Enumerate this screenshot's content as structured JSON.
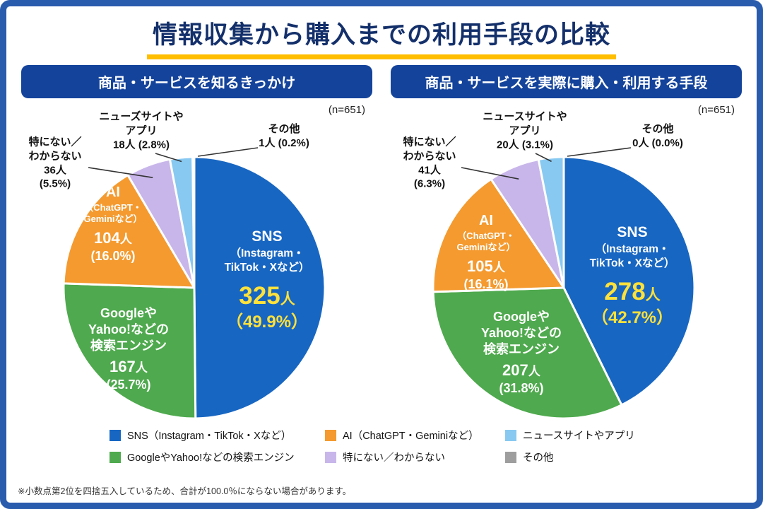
{
  "page": {
    "title": "情報収集から購入までの利用手段の比較",
    "footnote": "※小数点第2位を四捨五入しているため、合計が100.0％にならない場合があります。"
  },
  "colors": {
    "frame": "#2a5cae",
    "header_bg": "#14439b",
    "title_text": "#14306b",
    "underline": "#ffbe00",
    "emphasis_text": "#ffe13b",
    "slices": [
      "#1766c2",
      "#4fa94e",
      "#f49a2f",
      "#c8b6ea",
      "#88c9f1",
      "#9e9e9e"
    ]
  },
  "legend": [
    {
      "label": "SNS（Instagram・TikTok・Xなど）",
      "color": 0
    },
    {
      "label": "AI（ChatGPT・Geminiなど）",
      "color": 2
    },
    {
      "label": "ニュースサイトやアプリ",
      "color": 4
    },
    {
      "label": "GoogleやYahoo!などの検索エンジン",
      "color": 1
    },
    {
      "label": "特にない／わからない",
      "color": 3
    },
    {
      "label": "その他",
      "color": 5
    }
  ],
  "chart_data": [
    {
      "type": "pie",
      "header": "商品・サービスを知るきっかけ",
      "n_label": "(n=651)",
      "total": 651,
      "slices": [
        {
          "label": "SNS（Instagram・TikTok・Xなど）",
          "value": 325,
          "percent": 49.9,
          "placement": "inner",
          "emphasis": true,
          "display": {
            "name_lines": [
              "SNS",
              "（Instagram・",
              "TikTok・Xなど）"
            ],
            "count_num": "325",
            "count_unit": "人",
            "pct": "（49.9%）"
          }
        },
        {
          "label": "GoogleやYahoo!などの検索エンジン",
          "value": 167,
          "percent": 25.7,
          "placement": "inner",
          "display": {
            "name_lines": [
              "Googleや",
              "Yahoo!などの",
              "検索エンジン"
            ],
            "count_num": "167",
            "count_unit": "人",
            "pct": "(25.7%)"
          }
        },
        {
          "label": "AI（ChatGPT・Geminiなど）",
          "value": 104,
          "percent": 16.0,
          "placement": "inner",
          "display": {
            "name_lines": [
              "AI",
              "（ChatGPT・",
              "Geminiなど）"
            ],
            "count_num": "104",
            "count_unit": "人",
            "pct": "(16.0%)"
          }
        },
        {
          "label": "特にない／わからない",
          "value": 36,
          "percent": 5.5,
          "placement": "callout",
          "display": {
            "callout_lines": [
              "特にない／",
              "わからない",
              "36人",
              "(5.5%)"
            ]
          }
        },
        {
          "label": "ニューズサイトやアプリ",
          "value": 18,
          "percent": 2.8,
          "placement": "callout",
          "display": {
            "callout_lines": [
              "ニューズサイトや",
              "アプリ",
              "18人 (2.8%)"
            ]
          }
        },
        {
          "label": "その他",
          "value": 1,
          "percent": 0.2,
          "placement": "callout",
          "display": {
            "callout_lines": [
              "その他",
              "1人 (0.2%)"
            ]
          }
        }
      ]
    },
    {
      "type": "pie",
      "header": "商品・サービスを実際に購入・利用する手段",
      "n_label": "(n=651)",
      "total": 651,
      "slices": [
        {
          "label": "SNS（Instagram・TikTok・Xなど）",
          "value": 278,
          "percent": 42.7,
          "placement": "inner",
          "emphasis": true,
          "display": {
            "name_lines": [
              "SNS",
              "（Instagram・",
              "TikTok・Xなど）"
            ],
            "count_num": "278",
            "count_unit": "人",
            "pct": "（42.7%）"
          }
        },
        {
          "label": "GoogleやYahoo!などの検索エンジン",
          "value": 207,
          "percent": 31.8,
          "placement": "inner",
          "display": {
            "name_lines": [
              "Googleや",
              "Yahoo!などの",
              "検索エンジン"
            ],
            "count_num": "207",
            "count_unit": "人",
            "pct": "(31.8%)"
          }
        },
        {
          "label": "AI（ChatGPT・Geminiなど）",
          "value": 105,
          "percent": 16.1,
          "placement": "inner",
          "display": {
            "name_lines": [
              "AI",
              "（ChatGPT・",
              "Geminiなど）"
            ],
            "count_num": "105",
            "count_unit": "人",
            "pct": "(16.1%)"
          }
        },
        {
          "label": "特にない／わからない",
          "value": 41,
          "percent": 6.3,
          "placement": "callout",
          "display": {
            "callout_lines": [
              "特にない／",
              "わからない",
              "41人",
              "(6.3%)"
            ]
          }
        },
        {
          "label": "ニュースサイトやアプリ",
          "value": 20,
          "percent": 3.1,
          "placement": "callout",
          "display": {
            "callout_lines": [
              "ニュースサイトや",
              "アプリ",
              "20人 (3.1%)"
            ]
          }
        },
        {
          "label": "その他",
          "value": 0,
          "percent": 0.0,
          "placement": "callout",
          "display": {
            "callout_lines": [
              "その他",
              "0人 (0.0%)"
            ]
          }
        }
      ]
    }
  ]
}
